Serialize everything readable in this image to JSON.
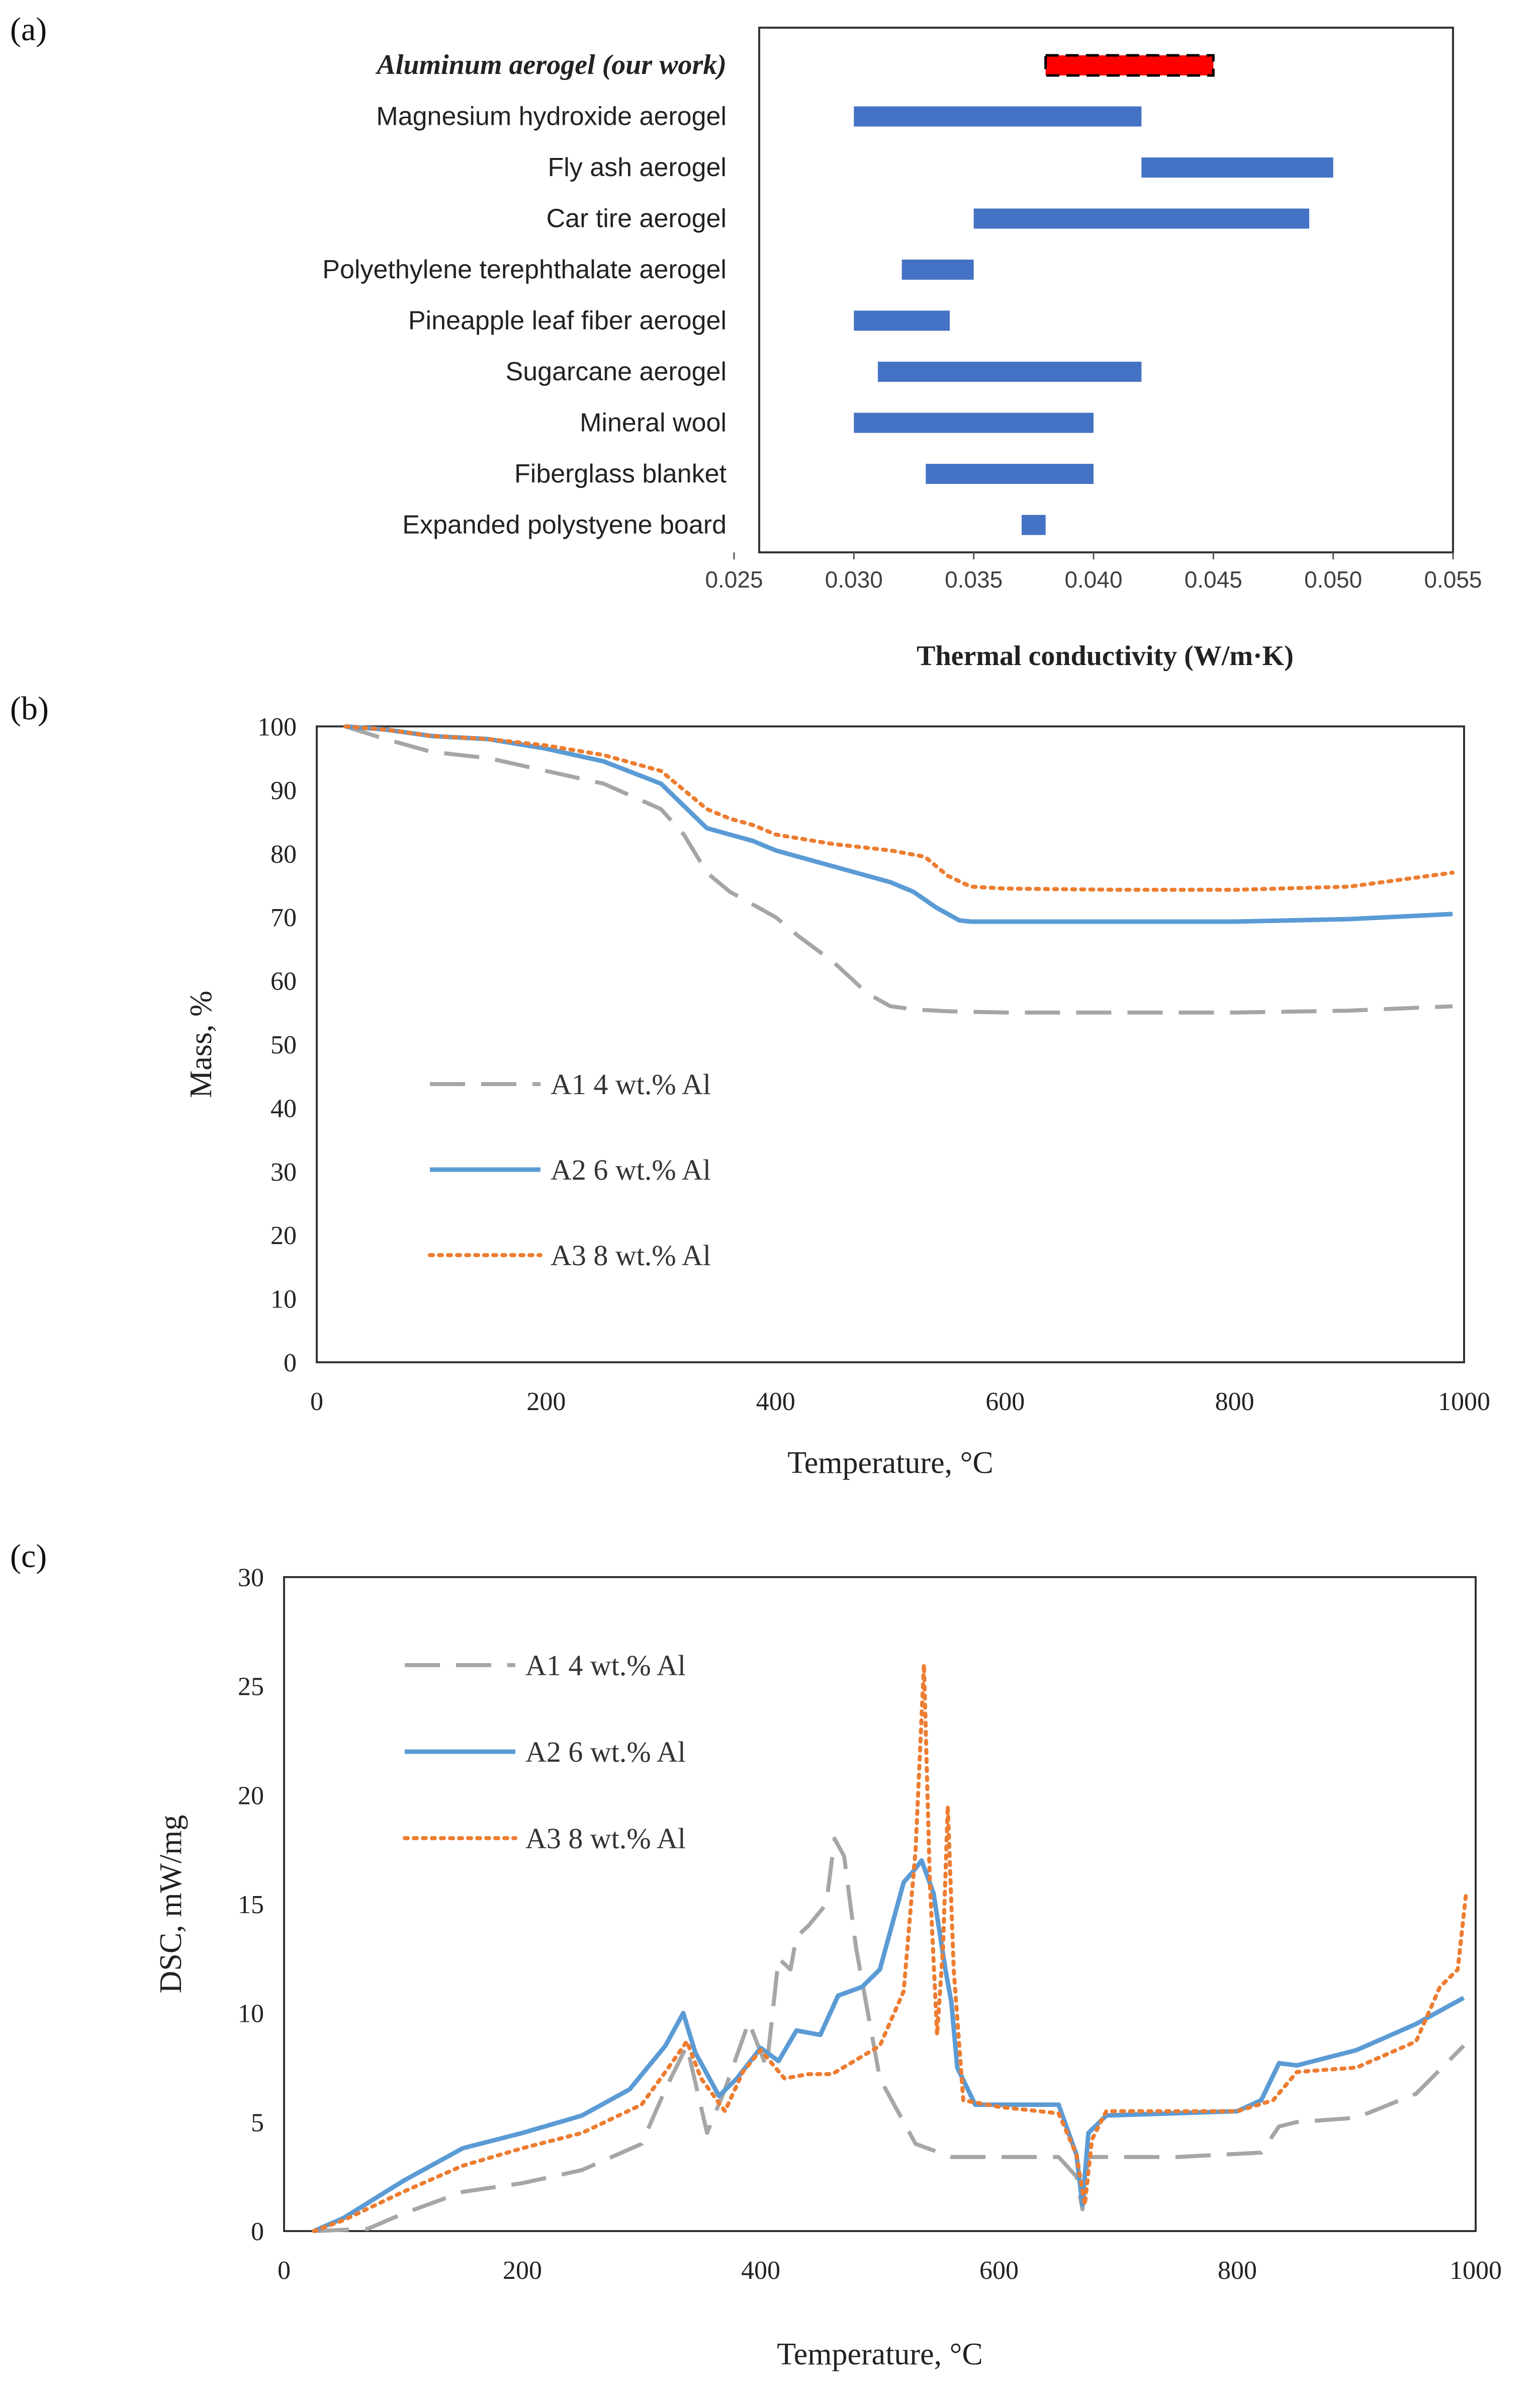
{
  "panels": {
    "a": "(a)",
    "b": "(b)",
    "c": "(c)"
  },
  "colors": {
    "bar": "#4472C4",
    "highlight": "#FF0000",
    "a1": "#A6A6A6",
    "a2": "#5B9BD5",
    "a3": "#ED7D31"
  },
  "chart_data": [
    {
      "id": "a",
      "type": "bar",
      "orientation": "horizontal-range",
      "xlabel": "Thermal conductivity (W/m·K)",
      "xlim": [
        0.025,
        0.055
      ],
      "xticks": [
        "0.025",
        "0.030",
        "0.035",
        "0.040",
        "0.045",
        "0.050",
        "0.055"
      ],
      "categories": [
        "Aluminum aerogel (our work)",
        "Magnesium hydroxide aerogel",
        "Fly ash aerogel",
        "Car tire aerogel",
        "Polyethylene terephthalate aerogel",
        "Pineapple leaf fiber aerogel",
        "Sugarcane aerogel",
        "Mineral wool",
        "Fiberglass blanket",
        "Expanded polystyene board"
      ],
      "ranges": [
        [
          0.038,
          0.045
        ],
        [
          0.03,
          0.042
        ],
        [
          0.042,
          0.05
        ],
        [
          0.035,
          0.049
        ],
        [
          0.032,
          0.035
        ],
        [
          0.03,
          0.034
        ],
        [
          0.031,
          0.042
        ],
        [
          0.03,
          0.04
        ],
        [
          0.033,
          0.04
        ],
        [
          0.037,
          0.038
        ]
      ],
      "highlight_index": 0
    },
    {
      "id": "b",
      "type": "line",
      "xlabel": "Temperature, °C",
      "ylabel": "Mass, %",
      "xlim": [
        0,
        1000
      ],
      "ylim": [
        0,
        100
      ],
      "xticks": [
        "0",
        "200",
        "400",
        "600",
        "800",
        "1000"
      ],
      "yticks": [
        "0",
        "10",
        "20",
        "30",
        "40",
        "50",
        "60",
        "70",
        "80",
        "90",
        "100"
      ],
      "legend_position": "left-middle",
      "series": [
        {
          "name": "A1 4 wt.% Al",
          "style": "dashed",
          "x": [
            25,
            60,
            100,
            150,
            200,
            250,
            300,
            320,
            340,
            360,
            380,
            400,
            420,
            450,
            480,
            500,
            520,
            550,
            600,
            700,
            800,
            900,
            990
          ],
          "y": [
            100,
            98,
            96,
            95,
            93,
            91,
            87,
            83,
            77,
            74,
            72,
            70,
            67,
            63,
            58,
            56,
            55.5,
            55.2,
            55,
            55,
            55,
            55.3,
            56
          ]
        },
        {
          "name": "A2 6 wt.% Al",
          "style": "solid",
          "x": [
            25,
            60,
            100,
            150,
            200,
            250,
            300,
            320,
            340,
            360,
            380,
            400,
            450,
            500,
            520,
            540,
            560,
            570,
            600,
            700,
            800,
            900,
            990
          ],
          "y": [
            100,
            99.5,
            98.5,
            98,
            96.5,
            94.5,
            91,
            87.5,
            84,
            83,
            82,
            80.5,
            78,
            75.5,
            74,
            71.5,
            69.5,
            69.3,
            69.3,
            69.3,
            69.3,
            69.7,
            70.5
          ]
        },
        {
          "name": "A3 8 wt.% Al",
          "style": "dotted",
          "x": [
            25,
            60,
            100,
            150,
            200,
            250,
            300,
            320,
            340,
            360,
            380,
            400,
            450,
            500,
            530,
            550,
            570,
            600,
            700,
            800,
            900,
            990
          ],
          "y": [
            100,
            99.5,
            98.5,
            98,
            97,
            95.5,
            93,
            90,
            87,
            85.5,
            84.5,
            83,
            81.5,
            80.5,
            79.5,
            76.5,
            74.8,
            74.5,
            74.3,
            74.3,
            74.8,
            77
          ]
        }
      ]
    },
    {
      "id": "c",
      "type": "line",
      "xlabel": "Temperature, °C",
      "ylabel": "DSC, mW/mg",
      "xlim": [
        0,
        1000
      ],
      "ylim": [
        0,
        30
      ],
      "xticks": [
        "0",
        "200",
        "400",
        "600",
        "800",
        "1000"
      ],
      "yticks": [
        "0",
        "5",
        "10",
        "15",
        "20",
        "25",
        "30"
      ],
      "legend_position": "top-left",
      "series": [
        {
          "name": "A1 4 wt.% Al",
          "style": "dashed",
          "x": [
            25,
            70,
            100,
            150,
            200,
            250,
            300,
            320,
            338,
            355,
            370,
            390,
            405,
            415,
            425,
            430,
            440,
            455,
            462,
            470,
            480,
            500,
            530,
            560,
            600,
            650,
            665,
            670,
            675,
            690,
            750,
            820,
            835,
            850,
            900,
            950,
            990
          ],
          "y": [
            0,
            0.1,
            0.8,
            1.8,
            2.2,
            2.8,
            4.0,
            6.5,
            8.5,
            4.5,
            6.5,
            9.6,
            7.5,
            12.5,
            12,
            13.5,
            14,
            15,
            18,
            17.2,
            13,
            7,
            4,
            3.4,
            3.4,
            3.4,
            2.5,
            1.0,
            3.4,
            3.4,
            3.4,
            3.6,
            4.8,
            5.0,
            5.2,
            6.3,
            8.5
          ]
        },
        {
          "name": "A2 6 wt.% Al",
          "style": "solid",
          "x": [
            25,
            50,
            100,
            150,
            200,
            250,
            290,
            320,
            335,
            345,
            365,
            380,
            400,
            415,
            430,
            450,
            465,
            485,
            500,
            520,
            528,
            535,
            545,
            555,
            560,
            565,
            580,
            650,
            665,
            670,
            675,
            690,
            800,
            820,
            835,
            850,
            900,
            950,
            990
          ],
          "y": [
            0,
            0.6,
            2.3,
            3.8,
            4.5,
            5.3,
            6.5,
            8.5,
            10.0,
            8.2,
            6.2,
            7.0,
            8.4,
            7.8,
            9.2,
            9.0,
            10.8,
            11.2,
            12.0,
            16.0,
            16.5,
            17.0,
            15.5,
            12.0,
            10.5,
            7.5,
            5.8,
            5.8,
            3.5,
            1.2,
            4.5,
            5.3,
            5.5,
            6.0,
            7.7,
            7.6,
            8.3,
            9.5,
            10.7
          ]
        },
        {
          "name": "A3 8 wt.% Al",
          "style": "dotted",
          "x": [
            25,
            50,
            100,
            150,
            200,
            250,
            300,
            320,
            338,
            350,
            370,
            385,
            400,
            420,
            440,
            460,
            500,
            520,
            530,
            537,
            542,
            548,
            553,
            557,
            562,
            570,
            600,
            650,
            665,
            672,
            678,
            690,
            800,
            830,
            850,
            900,
            950,
            970,
            985,
            992
          ],
          "y": [
            0,
            0.5,
            1.8,
            3.0,
            3.8,
            4.5,
            5.8,
            7.3,
            8.7,
            7.0,
            5.5,
            7.3,
            8.3,
            7.0,
            7.2,
            7.2,
            8.5,
            11.0,
            17.5,
            26.0,
            16.0,
            9.0,
            13.0,
            19.5,
            12.0,
            6.0,
            5.7,
            5.4,
            3.5,
            1.2,
            4.2,
            5.5,
            5.5,
            6.0,
            7.3,
            7.5,
            8.7,
            11.2,
            12.0,
            15.5
          ]
        }
      ]
    }
  ]
}
